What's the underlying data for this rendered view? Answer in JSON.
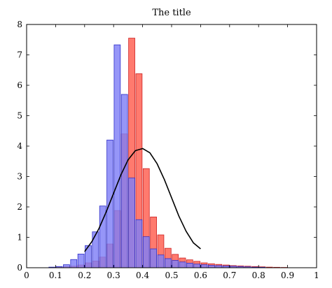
{
  "chart_data": {
    "type": "bar",
    "title": "The title",
    "xlabel": "",
    "ylabel": "",
    "xlim": [
      0,
      1
    ],
    "ylim": [
      0,
      8
    ],
    "x_ticks": [
      "0",
      "0.1",
      "0.2",
      "0.3",
      "0.4",
      "0.5",
      "0.6",
      "0.7",
      "0.8",
      "0.9",
      "1"
    ],
    "y_ticks": [
      "0",
      "1",
      "2",
      "3",
      "4",
      "5",
      "6",
      "7",
      "8"
    ],
    "grid": false,
    "legend": "none",
    "bin_width": 0.025,
    "series": [
      {
        "kind": "histogram",
        "color": "#ff7a6e",
        "edge": "#cc2222",
        "bins": [
          {
            "x": 0.1,
            "y": 0.02
          },
          {
            "x": 0.125,
            "y": 0.03
          },
          {
            "x": 0.15,
            "y": 0.05
          },
          {
            "x": 0.175,
            "y": 0.09
          },
          {
            "x": 0.2,
            "y": 0.16
          },
          {
            "x": 0.225,
            "y": 0.22
          },
          {
            "x": 0.25,
            "y": 0.35
          },
          {
            "x": 0.275,
            "y": 0.78
          },
          {
            "x": 0.3,
            "y": 1.88
          },
          {
            "x": 0.325,
            "y": 4.4
          },
          {
            "x": 0.35,
            "y": 7.55
          },
          {
            "x": 0.375,
            "y": 6.38
          },
          {
            "x": 0.4,
            "y": 3.26
          },
          {
            "x": 0.425,
            "y": 1.67
          },
          {
            "x": 0.45,
            "y": 1.08
          },
          {
            "x": 0.475,
            "y": 0.64
          },
          {
            "x": 0.5,
            "y": 0.44
          },
          {
            "x": 0.525,
            "y": 0.32
          },
          {
            "x": 0.55,
            "y": 0.26
          },
          {
            "x": 0.575,
            "y": 0.21
          },
          {
            "x": 0.6,
            "y": 0.16
          },
          {
            "x": 0.625,
            "y": 0.13
          },
          {
            "x": 0.65,
            "y": 0.11
          },
          {
            "x": 0.675,
            "y": 0.09
          },
          {
            "x": 0.7,
            "y": 0.07
          },
          {
            "x": 0.725,
            "y": 0.06
          },
          {
            "x": 0.75,
            "y": 0.05
          },
          {
            "x": 0.775,
            "y": 0.04
          },
          {
            "x": 0.8,
            "y": 0.03
          },
          {
            "x": 0.825,
            "y": 0.02
          },
          {
            "x": 0.85,
            "y": 0.015
          },
          {
            "x": 0.875,
            "y": 0.01
          }
        ]
      },
      {
        "kind": "histogram",
        "color": "#7f7ff6",
        "edge": "#3030c8",
        "bins": [
          {
            "x": 0.075,
            "y": 0.02
          },
          {
            "x": 0.1,
            "y": 0.04
          },
          {
            "x": 0.125,
            "y": 0.1
          },
          {
            "x": 0.15,
            "y": 0.27
          },
          {
            "x": 0.175,
            "y": 0.45
          },
          {
            "x": 0.2,
            "y": 0.73
          },
          {
            "x": 0.225,
            "y": 1.18
          },
          {
            "x": 0.25,
            "y": 2.03
          },
          {
            "x": 0.275,
            "y": 4.2
          },
          {
            "x": 0.3,
            "y": 7.33
          },
          {
            "x": 0.325,
            "y": 5.7
          },
          {
            "x": 0.35,
            "y": 2.95
          },
          {
            "x": 0.375,
            "y": 1.58
          },
          {
            "x": 0.4,
            "y": 1.02
          },
          {
            "x": 0.425,
            "y": 0.62
          },
          {
            "x": 0.45,
            "y": 0.42
          },
          {
            "x": 0.475,
            "y": 0.3
          },
          {
            "x": 0.5,
            "y": 0.24
          },
          {
            "x": 0.525,
            "y": 0.19
          },
          {
            "x": 0.55,
            "y": 0.15
          },
          {
            "x": 0.575,
            "y": 0.12
          },
          {
            "x": 0.6,
            "y": 0.1
          },
          {
            "x": 0.625,
            "y": 0.08
          },
          {
            "x": 0.65,
            "y": 0.07
          },
          {
            "x": 0.675,
            "y": 0.06
          },
          {
            "x": 0.7,
            "y": 0.05
          },
          {
            "x": 0.725,
            "y": 0.04
          },
          {
            "x": 0.75,
            "y": 0.03
          },
          {
            "x": 0.775,
            "y": 0.02
          },
          {
            "x": 0.8,
            "y": 0.015
          }
        ]
      },
      {
        "kind": "curve",
        "color": "#000000",
        "x": [
          0.2,
          0.225,
          0.25,
          0.275,
          0.3,
          0.325,
          0.35,
          0.375,
          0.4,
          0.425,
          0.45,
          0.475,
          0.5,
          0.525,
          0.55,
          0.575,
          0.6
        ],
        "values": [
          0.53,
          0.86,
          1.3,
          1.85,
          2.45,
          3.05,
          3.55,
          3.85,
          3.92,
          3.78,
          3.42,
          2.9,
          2.3,
          1.7,
          1.2,
          0.82,
          0.62
        ]
      }
    ]
  }
}
